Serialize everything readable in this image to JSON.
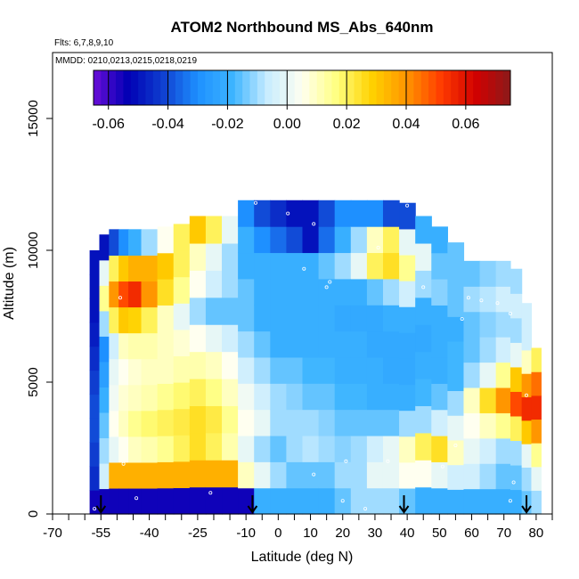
{
  "chart_data": {
    "type": "heatmap",
    "title": "ATOM2 Northbound MS_Abs_640nm",
    "flights_note": "Flts: 6,7,8,9,10",
    "mmdd_note": "MMDD: 0210,0213,0215,0218,0219",
    "xlabel": "Latitude (deg N)",
    "ylabel": "Altitude (m)",
    "xlim": [
      -70,
      85
    ],
    "ylim": [
      0,
      17500
    ],
    "x_ticks": [
      -70,
      -55,
      -40,
      -25,
      -10,
      0,
      10,
      20,
      30,
      40,
      50,
      60,
      70,
      80
    ],
    "y_ticks": [
      0,
      5000,
      10000,
      15000
    ],
    "colorbar": {
      "min": -0.065,
      "max": 0.075,
      "ticks": [
        -0.06,
        -0.04,
        -0.02,
        0.0,
        0.02,
        0.04,
        0.06
      ],
      "tick_labels": [
        "-0.06",
        "-0.04",
        "-0.02",
        "0.00",
        "0.02",
        "0.04",
        "0.06"
      ],
      "colors": [
        "#6a0dd8",
        "#0000b4",
        "#0f3fd0",
        "#1e90ff",
        "#3cb4ff",
        "#c8ecff",
        "#fffff0",
        "#ffff80",
        "#ffd200",
        "#ff9600",
        "#ff3c00",
        "#d20000",
        "#8b1a1a"
      ]
    },
    "columns": [
      {
        "lat": -57,
        "min_alt": 0,
        "max_alt": 10000,
        "values": [
          -0.055,
          -0.045,
          -0.042,
          -0.04,
          -0.04,
          -0.042,
          -0.045,
          -0.048,
          -0.05,
          -0.05,
          -0.05
        ]
      },
      {
        "lat": -54,
        "min_alt": 0,
        "max_alt": 10600,
        "values": [
          -0.055,
          -0.005,
          -0.01,
          -0.015,
          -0.02,
          -0.025,
          -0.03,
          -0.01,
          0.015,
          0.0,
          -0.05
        ]
      },
      {
        "lat": -51,
        "min_alt": 0,
        "max_alt": 10800,
        "values": [
          -0.055,
          0.035,
          0.0,
          0.005,
          0.002,
          0.0,
          -0.005,
          0.02,
          0.04,
          0.02,
          -0.04
        ]
      },
      {
        "lat": -48,
        "min_alt": 0,
        "max_alt": 10800,
        "values": [
          -0.055,
          0.035,
          0.005,
          0.01,
          0.008,
          0.005,
          0.01,
          0.03,
          0.05,
          0.03,
          -0.03
        ]
      },
      {
        "lat": -45,
        "min_alt": 0,
        "max_alt": 10800,
        "values": [
          -0.055,
          0.035,
          0.01,
          0.015,
          0.01,
          0.008,
          0.012,
          0.028,
          0.055,
          0.035,
          -0.02
        ]
      },
      {
        "lat": -40,
        "min_alt": 0,
        "max_alt": 10800,
        "values": [
          -0.055,
          0.035,
          0.012,
          0.018,
          0.012,
          0.01,
          0.012,
          0.02,
          0.04,
          0.035,
          -0.01
        ]
      },
      {
        "lat": -35,
        "min_alt": 0,
        "max_alt": 10900,
        "values": [
          -0.055,
          0.035,
          0.015,
          0.02,
          0.015,
          0.01,
          0.01,
          0.01,
          0.025,
          0.03,
          0.005
        ]
      },
      {
        "lat": -30,
        "min_alt": 0,
        "max_alt": 11000,
        "values": [
          -0.055,
          0.035,
          0.02,
          0.022,
          0.018,
          0.012,
          0.008,
          0.0,
          0.015,
          0.02,
          0.02
        ]
      },
      {
        "lat": -25,
        "min_alt": 0,
        "max_alt": 11300,
        "values": [
          -0.055,
          0.035,
          0.025,
          0.025,
          0.02,
          0.012,
          0.005,
          -0.01,
          0.005,
          0.01,
          0.03
        ]
      },
      {
        "lat": -20,
        "min_alt": 0,
        "max_alt": 11300,
        "values": [
          -0.055,
          0.035,
          0.02,
          0.022,
          0.016,
          0.01,
          0.0,
          -0.015,
          -0.005,
          0.0,
          0.02
        ]
      },
      {
        "lat": -15,
        "min_alt": 0,
        "max_alt": 11300,
        "values": [
          -0.055,
          0.035,
          0.012,
          0.015,
          0.01,
          0.005,
          -0.005,
          -0.015,
          -0.01,
          -0.01,
          0.0
        ]
      },
      {
        "lat": -10,
        "min_alt": 0,
        "max_alt": 11900,
        "values": [
          -0.055,
          0.01,
          0.0,
          0.005,
          0.002,
          -0.005,
          -0.01,
          -0.015,
          -0.015,
          -0.02,
          -0.02,
          -0.03
        ]
      },
      {
        "lat": -5,
        "min_alt": 0,
        "max_alt": 11900,
        "values": [
          -0.02,
          0.0,
          -0.01,
          0.0,
          -0.005,
          -0.01,
          -0.015,
          -0.02,
          -0.02,
          -0.02,
          -0.03,
          -0.04
        ]
      },
      {
        "lat": 0,
        "min_alt": 0,
        "max_alt": 11900,
        "values": [
          -0.02,
          -0.01,
          -0.015,
          -0.01,
          -0.01,
          -0.015,
          -0.02,
          -0.02,
          -0.02,
          -0.02,
          -0.035,
          -0.045
        ]
      },
      {
        "lat": 5,
        "min_alt": 0,
        "max_alt": 11900,
        "values": [
          -0.02,
          -0.015,
          -0.01,
          -0.01,
          -0.012,
          -0.015,
          -0.02,
          -0.02,
          -0.02,
          -0.02,
          -0.04,
          -0.05
        ]
      },
      {
        "lat": 10,
        "min_alt": 0,
        "max_alt": 11900,
        "values": [
          -0.02,
          -0.015,
          -0.008,
          -0.01,
          -0.015,
          -0.018,
          -0.02,
          -0.02,
          -0.02,
          -0.02,
          -0.05,
          -0.05
        ]
      },
      {
        "lat": 15,
        "min_alt": 0,
        "max_alt": 11900,
        "values": [
          -0.02,
          -0.015,
          -0.01,
          -0.012,
          -0.015,
          -0.018,
          -0.02,
          -0.02,
          -0.02,
          -0.015,
          -0.035,
          -0.04
        ]
      },
      {
        "lat": 20,
        "min_alt": 0,
        "max_alt": 11900,
        "values": [
          -0.015,
          -0.01,
          -0.012,
          -0.015,
          -0.018,
          -0.02,
          -0.02,
          -0.022,
          -0.02,
          -0.01,
          -0.02,
          -0.03
        ]
      },
      {
        "lat": 25,
        "min_alt": 0,
        "max_alt": 11900,
        "values": [
          -0.01,
          -0.01,
          -0.01,
          -0.015,
          -0.018,
          -0.02,
          -0.02,
          -0.022,
          -0.02,
          0.0,
          -0.01,
          -0.03
        ]
      },
      {
        "lat": 30,
        "min_alt": 0,
        "max_alt": 11900,
        "values": [
          -0.01,
          0.0,
          -0.005,
          -0.015,
          -0.02,
          -0.02,
          -0.022,
          -0.022,
          -0.015,
          0.02,
          0.01,
          -0.03
        ]
      },
      {
        "lat": 35,
        "min_alt": 0,
        "max_alt": 11900,
        "values": [
          -0.01,
          0.0,
          0.0,
          -0.015,
          -0.02,
          -0.022,
          -0.022,
          -0.02,
          -0.01,
          0.025,
          0.02,
          -0.04
        ]
      },
      {
        "lat": 40,
        "min_alt": 0,
        "max_alt": 11800,
        "values": [
          -0.015,
          0.005,
          0.01,
          -0.01,
          -0.02,
          -0.022,
          -0.022,
          -0.02,
          -0.005,
          0.015,
          0.0,
          -0.04
        ]
      },
      {
        "lat": 45,
        "min_alt": 0,
        "max_alt": 11300,
        "values": [
          -0.02,
          0.005,
          0.02,
          -0.01,
          -0.018,
          -0.02,
          -0.022,
          -0.02,
          -0.01,
          0.0,
          -0.02
        ]
      },
      {
        "lat": 50,
        "min_alt": 0,
        "max_alt": 10900,
        "values": [
          -0.02,
          0.0,
          0.025,
          -0.005,
          -0.015,
          -0.02,
          -0.02,
          -0.02,
          -0.012,
          -0.015,
          -0.02
        ]
      },
      {
        "lat": 55,
        "min_alt": 0,
        "max_alt": 10300,
        "values": [
          -0.02,
          -0.005,
          0.01,
          0.0,
          -0.01,
          -0.018,
          -0.018,
          -0.02,
          -0.015,
          -0.015,
          -0.015
        ]
      },
      {
        "lat": 60,
        "min_alt": 0,
        "max_alt": 9600,
        "values": [
          -0.02,
          -0.005,
          0.0,
          0.005,
          0.01,
          -0.01,
          -0.015,
          -0.015,
          -0.01,
          -0.015
        ]
      },
      {
        "lat": 65,
        "min_alt": 0,
        "max_alt": 9600,
        "values": [
          -0.02,
          -0.01,
          -0.005,
          0.01,
          0.025,
          0.0,
          -0.01,
          -0.012,
          -0.008,
          -0.012
        ]
      },
      {
        "lat": 70,
        "min_alt": 0,
        "max_alt": 9600,
        "values": [
          -0.02,
          -0.015,
          -0.01,
          0.015,
          0.04,
          0.015,
          -0.005,
          -0.01,
          -0.005,
          -0.01
        ]
      },
      {
        "lat": 74,
        "min_alt": 0,
        "max_alt": 9300,
        "values": [
          -0.02,
          -0.015,
          -0.01,
          0.02,
          0.05,
          0.03,
          0.0,
          -0.01,
          -0.005,
          -0.01
        ]
      },
      {
        "lat": 77,
        "min_alt": 0,
        "max_alt": 8000,
        "values": [
          -0.015,
          -0.01,
          0.0,
          0.03,
          0.055,
          0.04,
          0.01,
          -0.005,
          -0.005
        ]
      },
      {
        "lat": 80,
        "min_alt": 0,
        "max_alt": 6300,
        "values": [
          -0.01,
          0.0,
          0.015,
          0.04,
          0.055,
          0.045,
          0.02
        ]
      }
    ],
    "sample_points": [
      {
        "x": -49,
        "y": 8200
      },
      {
        "x": -48,
        "y": 1900
      },
      {
        "x": -44,
        "y": 600
      },
      {
        "x": -35,
        "y": 11000
      },
      {
        "x": -30,
        "y": 11100
      },
      {
        "x": -21,
        "y": 800
      },
      {
        "x": -7,
        "y": 11800
      },
      {
        "x": 3,
        "y": 11400
      },
      {
        "x": 11,
        "y": 11000
      },
      {
        "x": 15,
        "y": 8600
      },
      {
        "x": 16,
        "y": 8800
      },
      {
        "x": 8,
        "y": 9300
      },
      {
        "x": 11,
        "y": 1500
      },
      {
        "x": 21,
        "y": 2000
      },
      {
        "x": 31,
        "y": 10100
      },
      {
        "x": 34,
        "y": 2000
      },
      {
        "x": 40,
        "y": 11700
      },
      {
        "x": 45,
        "y": 8600
      },
      {
        "x": 51,
        "y": 1800
      },
      {
        "x": 55,
        "y": 2600
      },
      {
        "x": 57,
        "y": 7400
      },
      {
        "x": 59,
        "y": 8200
      },
      {
        "x": 63,
        "y": 8100
      },
      {
        "x": 68,
        "y": 8000
      },
      {
        "x": 72,
        "y": 7600
      },
      {
        "x": 73,
        "y": 1200
      },
      {
        "x": 77,
        "y": 4500
      },
      {
        "x": 72,
        "y": 500
      },
      {
        "x": 20,
        "y": 500
      },
      {
        "x": 27,
        "y": 200
      },
      {
        "x": -57,
        "y": 200
      }
    ],
    "arrows_lat": [
      -55,
      -8,
      39,
      77
    ]
  }
}
